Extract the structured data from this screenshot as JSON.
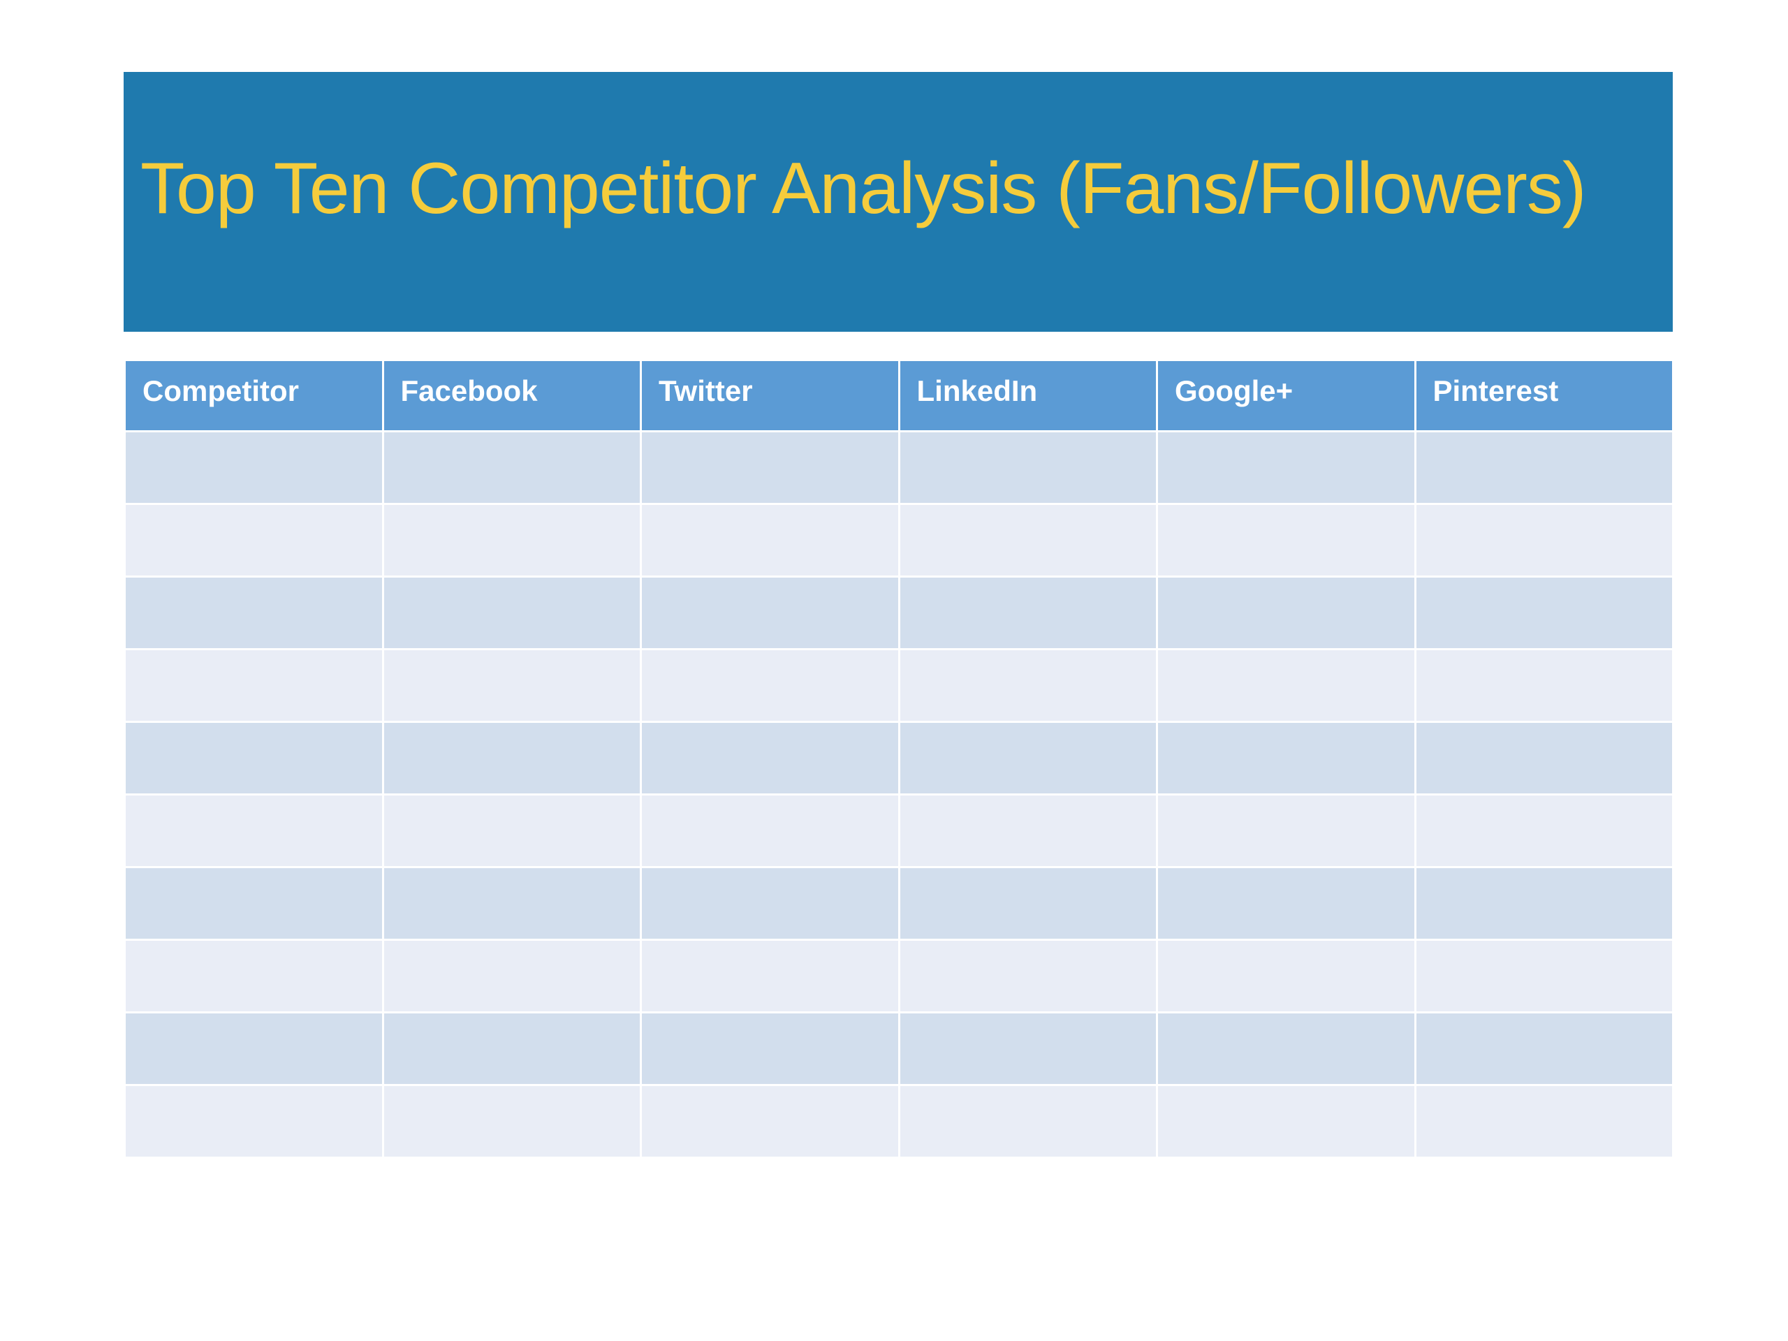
{
  "slide": {
    "title": "Top Ten Competitor Analysis (Fans/Followers)"
  },
  "table": {
    "headers": [
      "Competitor",
      "Facebook",
      "Twitter",
      "LinkedIn",
      "Google+",
      "Pinterest"
    ],
    "rows": [
      [
        "",
        "",
        "",
        "",
        "",
        ""
      ],
      [
        "",
        "",
        "",
        "",
        "",
        ""
      ],
      [
        "",
        "",
        "",
        "",
        "",
        ""
      ],
      [
        "",
        "",
        "",
        "",
        "",
        ""
      ],
      [
        "",
        "",
        "",
        "",
        "",
        ""
      ],
      [
        "",
        "",
        "",
        "",
        "",
        ""
      ],
      [
        "",
        "",
        "",
        "",
        "",
        ""
      ],
      [
        "",
        "",
        "",
        "",
        "",
        ""
      ],
      [
        "",
        "",
        "",
        "",
        "",
        ""
      ],
      [
        "",
        "",
        "",
        "",
        "",
        ""
      ]
    ]
  },
  "colors": {
    "title_banner": "#1f7aae",
    "title_text": "#f5cc3c",
    "header_fill": "#5b9bd5",
    "row_band_dark": "#d2deed",
    "row_band_light": "#e9edf6"
  }
}
